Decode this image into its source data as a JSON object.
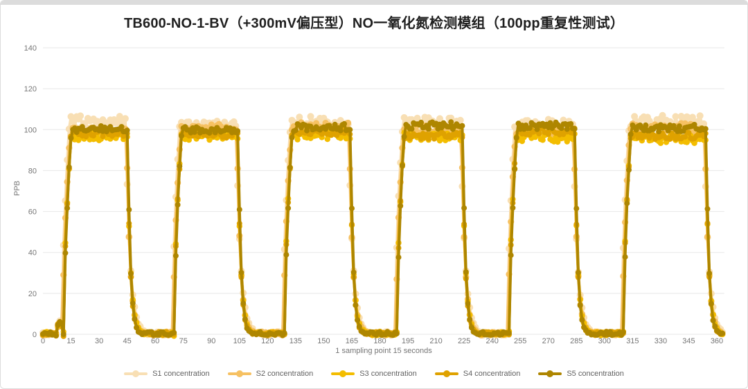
{
  "chart_data": {
    "type": "line",
    "title": "TB600-NO-1-BV（+300mV偏压型）NO一氧化氮检测模组（100pp重复性测试）",
    "xlabel": "1 sampling point 15 seconds",
    "ylabel": "PPB",
    "xlim": [
      0,
      364
    ],
    "ylim": [
      0,
      140
    ],
    "xticks": [
      0,
      15,
      30,
      45,
      60,
      75,
      90,
      105,
      120,
      135,
      150,
      165,
      180,
      195,
      210,
      225,
      240,
      255,
      270,
      285,
      300,
      315,
      330,
      345,
      360
    ],
    "yticks": [
      0,
      20,
      40,
      60,
      80,
      100,
      120,
      140
    ],
    "grid": "horizontal-only",
    "legend_position": "bottom",
    "style": {
      "grid_color": "#e7e7e7",
      "axis_text_color": "#757575",
      "legend_text_color": "#616161",
      "title_color": "#1f1f1f",
      "background": "#ffffff"
    },
    "waveform": {
      "description": "Six repeated exposure pulses of ~100 ppb NO; each cycle ~60 samples (15 min): fast rise, noisy plateau near 100 ppb, exponential decay back to ~0 ppb baseline.",
      "nominal_high_ppb": 100,
      "baseline_ppb": 0.4,
      "baseline_noise_ppb": 0.9,
      "initial_bump": {
        "x_start": 7,
        "x_end": 11,
        "ppb": 6
      },
      "pulses": [
        {
          "rise_start": 11,
          "plateau_start": 15,
          "plateau_end": 45,
          "fall_end": 53
        },
        {
          "rise_start": 70,
          "plateau_start": 74,
          "plateau_end": 104,
          "fall_end": 112
        },
        {
          "rise_start": 129,
          "plateau_start": 133,
          "plateau_end": 164,
          "fall_end": 172
        },
        {
          "rise_start": 189,
          "plateau_start": 193,
          "plateau_end": 224,
          "fall_end": 232
        },
        {
          "rise_start": 249,
          "plateau_start": 253,
          "plateau_end": 284,
          "fall_end": 292
        },
        {
          "rise_start": 310,
          "plateau_start": 314,
          "plateau_end": 354,
          "fall_end": 361
        }
      ]
    },
    "series": [
      {
        "name": "S1 concentration",
        "color": "#F8DFB4",
        "plateau_ppb": 103,
        "noise_ppb": 3.0,
        "marker_r": 5.0,
        "line_w": 4,
        "x_offset": -0.8,
        "fall_tau": 2.3
      },
      {
        "name": "S2 concentration",
        "color": "#F6C162",
        "plateau_ppb": 100,
        "noise_ppb": 2.5,
        "marker_r": 4.6,
        "line_w": 4,
        "x_offset": -0.4,
        "fall_tau": 1.9
      },
      {
        "name": "S3 concentration",
        "color": "#F3BD00",
        "plateau_ppb": 96,
        "noise_ppb": 2.1,
        "marker_r": 4.2,
        "line_w": 4,
        "x_offset": 0,
        "fall_tau": 1.7
      },
      {
        "name": "S4 concentration",
        "color": "#DFA200",
        "plateau_ppb": 98,
        "noise_ppb": 1.7,
        "marker_r": 4.0,
        "line_w": 4,
        "x_offset": 0.1,
        "fall_tau": 1.5
      },
      {
        "name": "S5 concentration",
        "color": "#AE8600",
        "plateau_ppb": 101,
        "noise_ppb": 1.8,
        "marker_r": 4.0,
        "line_w": 4,
        "x_offset": 0.3,
        "fall_tau": 1.4
      }
    ]
  }
}
